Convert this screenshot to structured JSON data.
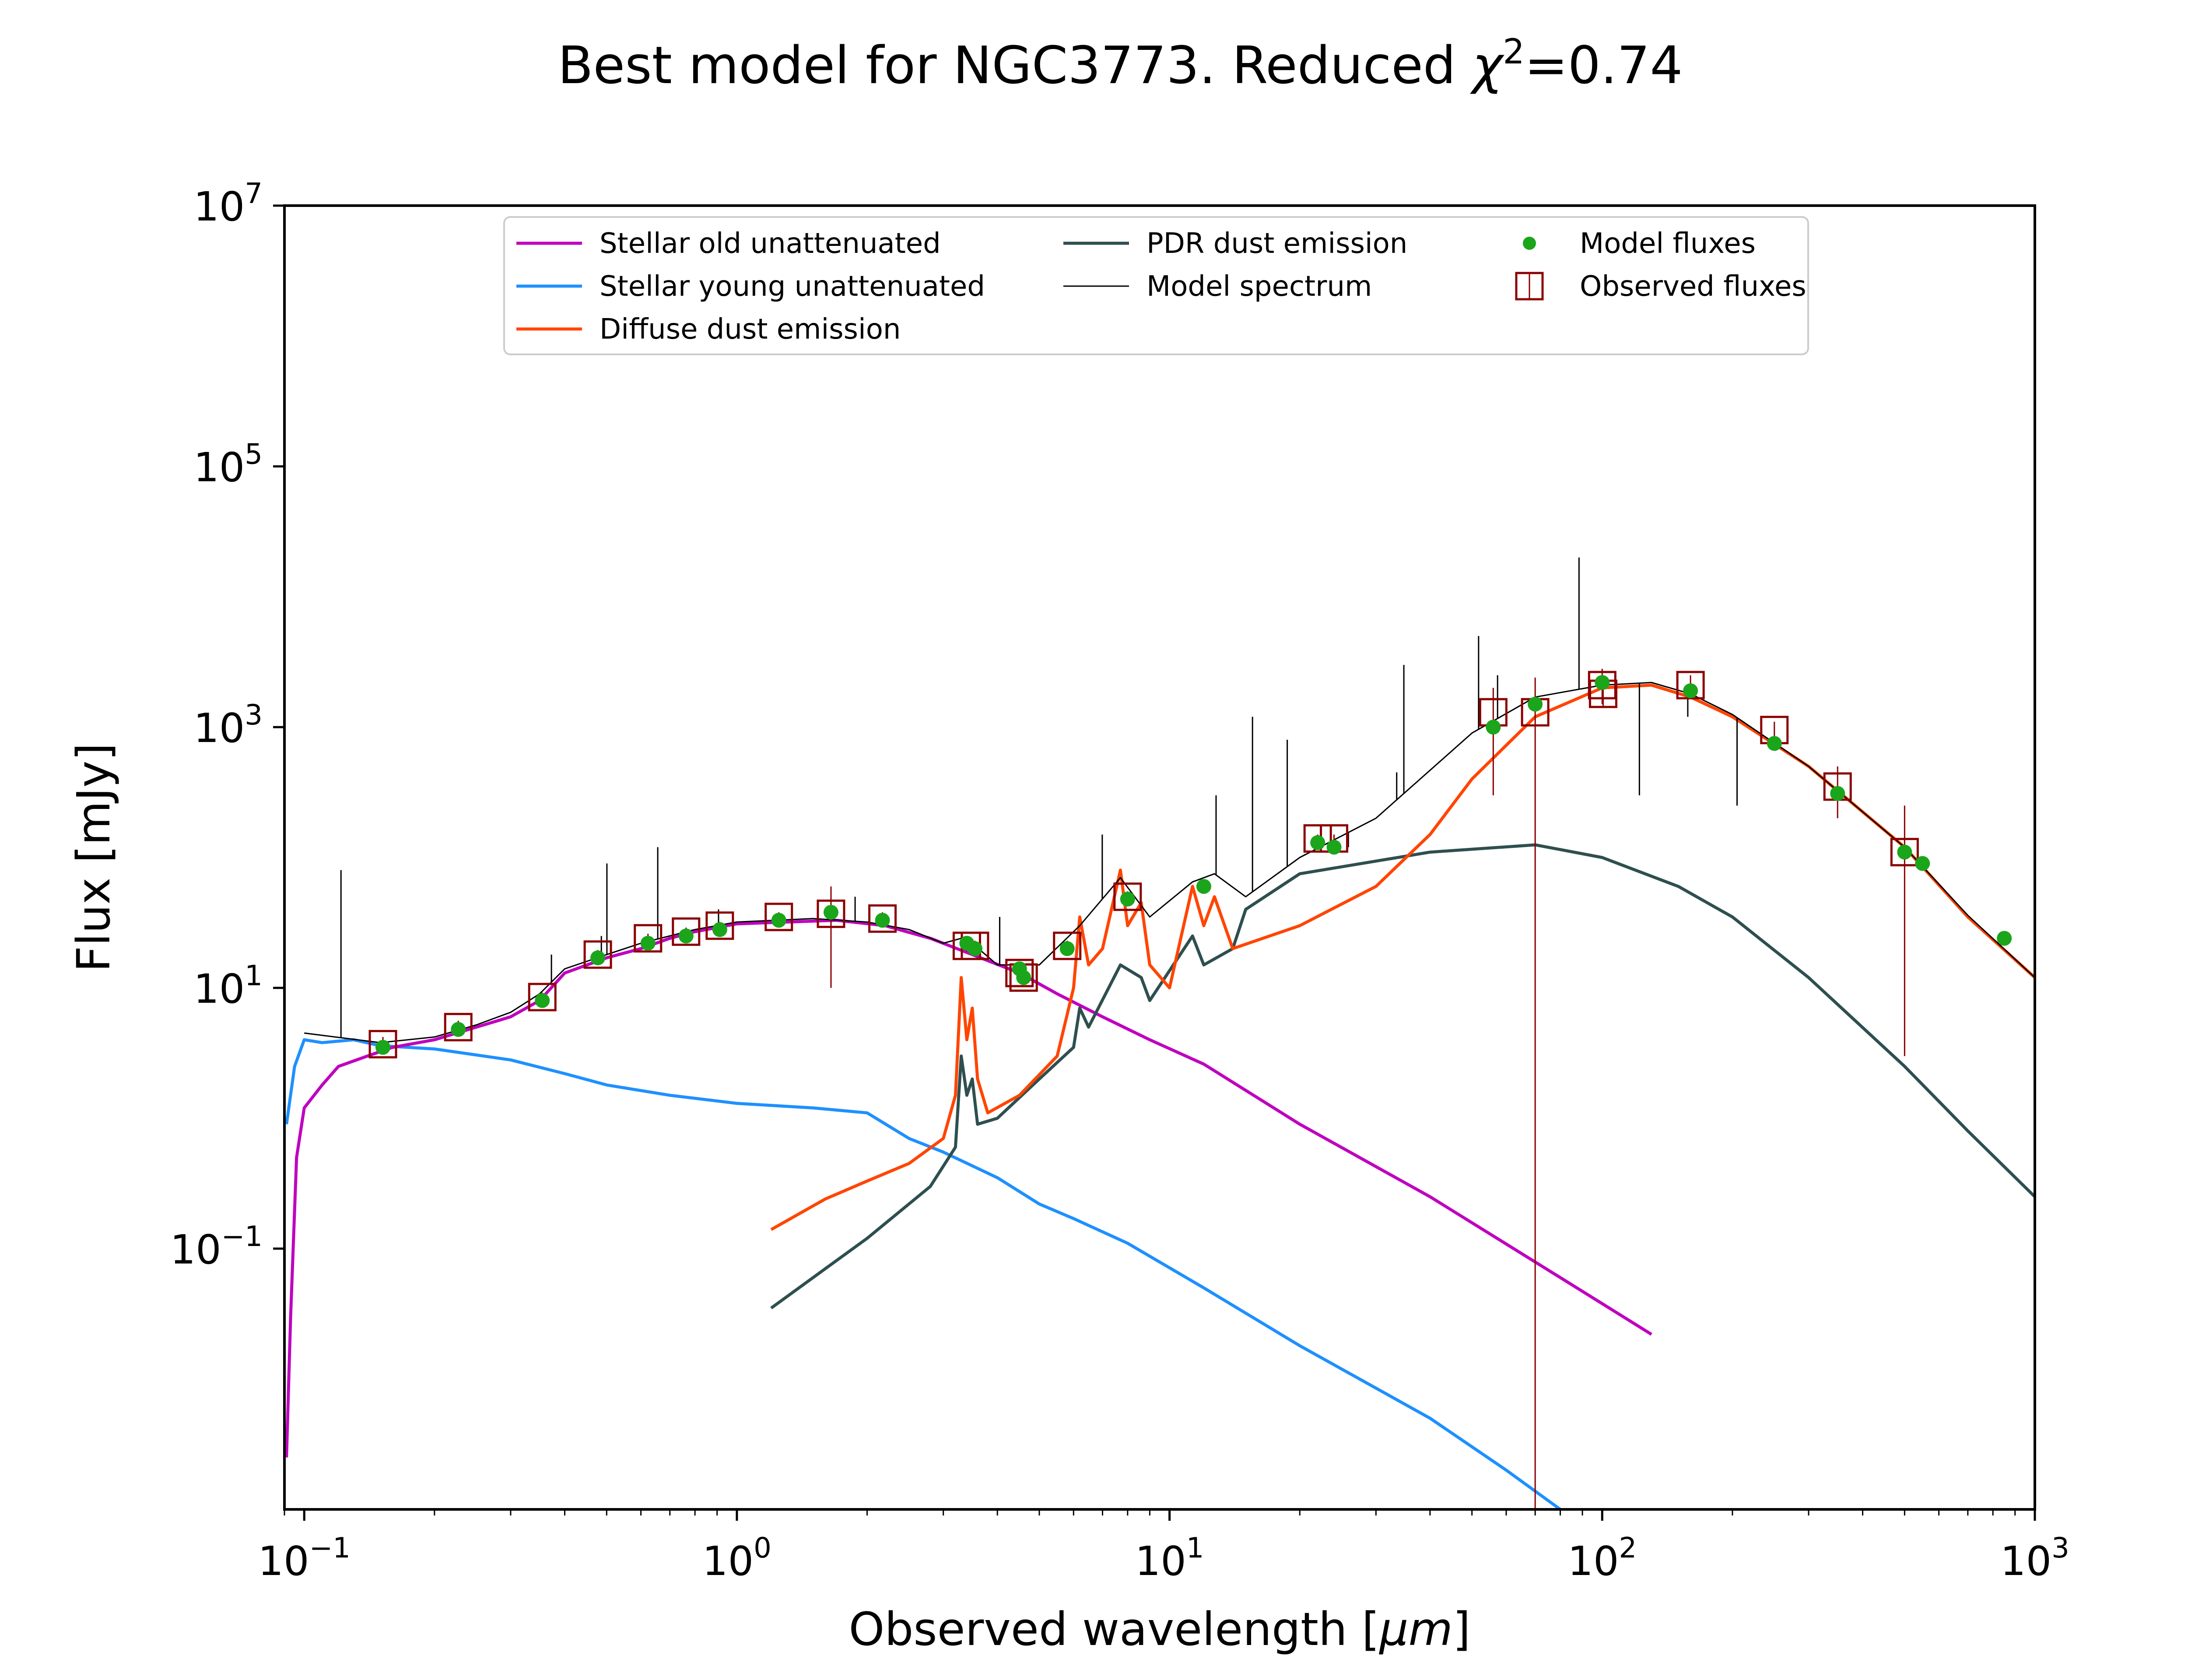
{
  "title": {
    "prefix": "Best model for NGC3773. Reduced ",
    "symbol": "χ",
    "superscript": "2",
    "suffix": "=0.74"
  },
  "chart_data": {
    "type": "line",
    "xscale": "log",
    "yscale": "log",
    "xlim": [
      0.09,
      1000
    ],
    "ylim": [
      0.001,
      10000000
    ],
    "xlabel_prefix": "Observed wavelength [",
    "xlabel_unit": "μm",
    "xlabel_suffix": "]",
    "ylabel": "Flux [mJy]",
    "x_ticks": [
      {
        "value": 0.1,
        "base": "10",
        "exp": "−1"
      },
      {
        "value": 1,
        "base": "10",
        "exp": "0"
      },
      {
        "value": 10,
        "base": "10",
        "exp": "1"
      },
      {
        "value": 100,
        "base": "10",
        "exp": "2"
      },
      {
        "value": 1000,
        "base": "10",
        "exp": "3"
      }
    ],
    "y_ticks": [
      {
        "value": 0.1,
        "base": "10",
        "exp": "−1"
      },
      {
        "value": 10,
        "base": "10",
        "exp": "1"
      },
      {
        "value": 1000,
        "base": "10",
        "exp": "3"
      },
      {
        "value": 100000,
        "base": "10",
        "exp": "5"
      },
      {
        "value": 10000000,
        "base": "10",
        "exp": "7"
      }
    ],
    "grid": false,
    "legend_position": "top-center",
    "series": [
      {
        "name": "Stellar old unattenuated",
        "color": "#bf00bf",
        "points": [
          [
            0.091,
            0.0025
          ],
          [
            0.093,
            0.03
          ],
          [
            0.096,
            0.5
          ],
          [
            0.1,
            1.2
          ],
          [
            0.11,
            1.8
          ],
          [
            0.12,
            2.5
          ],
          [
            0.14,
            3.0
          ],
          [
            0.16,
            3.5
          ],
          [
            0.2,
            4.0
          ],
          [
            0.25,
            5.0
          ],
          [
            0.3,
            6.0
          ],
          [
            0.35,
            8.0
          ],
          [
            0.4,
            13
          ],
          [
            0.5,
            17
          ],
          [
            0.6,
            20
          ],
          [
            0.7,
            24
          ],
          [
            0.8,
            27
          ],
          [
            1.0,
            31
          ],
          [
            1.3,
            32
          ],
          [
            1.7,
            33
          ],
          [
            2.2,
            30
          ],
          [
            2.8,
            24
          ],
          [
            3.5,
            18
          ],
          [
            4.5,
            13
          ],
          [
            5.5,
            9.0
          ],
          [
            7.0,
            6.0
          ],
          [
            9.0,
            4.0
          ],
          [
            12,
            2.6
          ],
          [
            20,
            0.9
          ],
          [
            40,
            0.25
          ],
          [
            80,
            0.06
          ],
          [
            130,
            0.022
          ]
        ]
      },
      {
        "name": "Stellar young unattenuated",
        "color": "#1e90ff",
        "points": [
          [
            0.091,
            0.9
          ],
          [
            0.095,
            2.5
          ],
          [
            0.1,
            4.0
          ],
          [
            0.11,
            3.8
          ],
          [
            0.13,
            4.0
          ],
          [
            0.15,
            3.6
          ],
          [
            0.2,
            3.4
          ],
          [
            0.3,
            2.8
          ],
          [
            0.4,
            2.2
          ],
          [
            0.5,
            1.8
          ],
          [
            0.7,
            1.5
          ],
          [
            1.0,
            1.3
          ],
          [
            1.5,
            1.2
          ],
          [
            2.0,
            1.1
          ],
          [
            2.5,
            0.7
          ],
          [
            3.0,
            0.55
          ],
          [
            4.0,
            0.35
          ],
          [
            5.0,
            0.22
          ],
          [
            6.0,
            0.17
          ],
          [
            8.0,
            0.11
          ],
          [
            12,
            0.05
          ],
          [
            20,
            0.018
          ],
          [
            40,
            0.005
          ],
          [
            60,
            0.002
          ],
          [
            80,
            0.001
          ]
        ]
      },
      {
        "name": "Diffuse dust emission",
        "color": "#ff4500",
        "points": [
          [
            1.2,
            0.14
          ],
          [
            1.6,
            0.24
          ],
          [
            2.0,
            0.33
          ],
          [
            2.5,
            0.45
          ],
          [
            3.0,
            0.7
          ],
          [
            3.2,
            1.5
          ],
          [
            3.3,
            12
          ],
          [
            3.4,
            4
          ],
          [
            3.5,
            7
          ],
          [
            3.6,
            2
          ],
          [
            3.8,
            1.1
          ],
          [
            4.5,
            1.5
          ],
          [
            5.5,
            3
          ],
          [
            6.0,
            10
          ],
          [
            6.2,
            35
          ],
          [
            6.5,
            15
          ],
          [
            7.0,
            20
          ],
          [
            7.7,
            80
          ],
          [
            8.0,
            30
          ],
          [
            8.6,
            45
          ],
          [
            9.0,
            15
          ],
          [
            10,
            10
          ],
          [
            11.3,
            60
          ],
          [
            12,
            30
          ],
          [
            12.7,
            50
          ],
          [
            14,
            20
          ],
          [
            20,
            30
          ],
          [
            30,
            60
          ],
          [
            40,
            150
          ],
          [
            50,
            400
          ],
          [
            70,
            1200
          ],
          [
            100,
            2000
          ],
          [
            130,
            2100
          ],
          [
            160,
            1700
          ],
          [
            200,
            1200
          ],
          [
            300,
            500
          ],
          [
            500,
            120
          ],
          [
            700,
            35
          ],
          [
            1000,
            12
          ]
        ]
      },
      {
        "name": "PDR dust emission",
        "color": "#2f4f4f",
        "points": [
          [
            1.2,
            0.035
          ],
          [
            2.0,
            0.12
          ],
          [
            2.8,
            0.3
          ],
          [
            3.2,
            0.6
          ],
          [
            3.3,
            3
          ],
          [
            3.4,
            1.5
          ],
          [
            3.5,
            2
          ],
          [
            3.6,
            0.9
          ],
          [
            4.0,
            1.0
          ],
          [
            5.0,
            2
          ],
          [
            6.0,
            3.5
          ],
          [
            6.2,
            7
          ],
          [
            6.5,
            5
          ],
          [
            7.7,
            15
          ],
          [
            8.6,
            12
          ],
          [
            9.0,
            8
          ],
          [
            11.3,
            25
          ],
          [
            12,
            15
          ],
          [
            14,
            20
          ],
          [
            15,
            40
          ],
          [
            20,
            75
          ],
          [
            40,
            110
          ],
          [
            70,
            125
          ],
          [
            100,
            100
          ],
          [
            150,
            60
          ],
          [
            200,
            35
          ],
          [
            300,
            12
          ],
          [
            500,
            2.5
          ],
          [
            700,
            0.8
          ],
          [
            1000,
            0.25
          ]
        ]
      },
      {
        "name": "Model spectrum",
        "color": "#000000",
        "points": [
          [
            0.1,
            4.5
          ],
          [
            0.15,
            3.8
          ],
          [
            0.2,
            4.2
          ],
          [
            0.25,
            5.2
          ],
          [
            0.3,
            6.5
          ],
          [
            0.35,
            9
          ],
          [
            0.4,
            14
          ],
          [
            0.5,
            18
          ],
          [
            0.6,
            22
          ],
          [
            0.8,
            28
          ],
          [
            1.0,
            32
          ],
          [
            1.5,
            34
          ],
          [
            2.0,
            32
          ],
          [
            2.5,
            28
          ],
          [
            3.0,
            22
          ],
          [
            3.3,
            24
          ],
          [
            3.5,
            22
          ],
          [
            4.0,
            15
          ],
          [
            5.0,
            15
          ],
          [
            6.2,
            30
          ],
          [
            7.7,
            70
          ],
          [
            9.0,
            35
          ],
          [
            11.3,
            65
          ],
          [
            12.7,
            75
          ],
          [
            15,
            50
          ],
          [
            20,
            100
          ],
          [
            30,
            200
          ],
          [
            50,
            900
          ],
          [
            70,
            1700
          ],
          [
            100,
            2100
          ],
          [
            130,
            2200
          ],
          [
            160,
            1800
          ],
          [
            200,
            1250
          ],
          [
            300,
            500
          ],
          [
            500,
            120
          ],
          [
            700,
            36
          ],
          [
            1000,
            12
          ]
        ]
      }
    ],
    "emission_lines": [
      [
        0.1216,
        80
      ],
      [
        0.3727,
        18
      ],
      [
        0.4861,
        25
      ],
      [
        0.5007,
        90
      ],
      [
        0.6563,
        120
      ],
      [
        0.9069,
        40
      ],
      [
        1.876,
        50
      ],
      [
        4.05,
        35
      ],
      [
        6.99,
        150
      ],
      [
        12.81,
        300
      ],
      [
        15.55,
        1200
      ],
      [
        18.71,
        800
      ],
      [
        25.9,
        120
      ],
      [
        33.5,
        450
      ],
      [
        34.8,
        3000
      ],
      [
        51.8,
        5000
      ],
      [
        57.3,
        2500
      ],
      [
        88.4,
        20000
      ],
      [
        121.9,
        300
      ],
      [
        157.7,
        1200
      ],
      [
        205,
        250
      ]
    ],
    "model_fluxes": {
      "name": "Model fluxes",
      "color": "#1aa51a",
      "points": [
        [
          0.152,
          3.5
        ],
        [
          0.227,
          4.8
        ],
        [
          0.355,
          8.0
        ],
        [
          0.477,
          17
        ],
        [
          0.623,
          22
        ],
        [
          0.763,
          25
        ],
        [
          0.913,
          28
        ],
        [
          1.25,
          33
        ],
        [
          1.65,
          38
        ],
        [
          2.17,
          33
        ],
        [
          3.4,
          22
        ],
        [
          3.55,
          20
        ],
        [
          4.5,
          14
        ],
        [
          4.6,
          12
        ],
        [
          5.8,
          20
        ],
        [
          8.0,
          48
        ],
        [
          12,
          60
        ],
        [
          22,
          130
        ],
        [
          24,
          120
        ],
        [
          56,
          1000
        ],
        [
          70,
          1500
        ],
        [
          100,
          2200
        ],
        [
          160,
          1900
        ],
        [
          250,
          750
        ],
        [
          350,
          310
        ],
        [
          500,
          110
        ],
        [
          550,
          90
        ],
        [
          850,
          24
        ]
      ]
    },
    "observed_fluxes": {
      "name": "Observed fluxes",
      "color": "#8b0000",
      "points": [
        {
          "x": 0.152,
          "y": 3.7,
          "lo": 3.2,
          "hi": 4.2
        },
        {
          "x": 0.227,
          "y": 5.0,
          "lo": 4.4,
          "hi": 5.6
        },
        {
          "x": 0.355,
          "y": 8.5,
          "lo": 7.8,
          "hi": 9.2
        },
        {
          "x": 0.477,
          "y": 18,
          "lo": 16.5,
          "hi": 19.5
        },
        {
          "x": 0.623,
          "y": 24,
          "lo": 22,
          "hi": 26
        },
        {
          "x": 0.763,
          "y": 27,
          "lo": 25,
          "hi": 29
        },
        {
          "x": 0.913,
          "y": 30,
          "lo": 28,
          "hi": 32
        },
        {
          "x": 1.25,
          "y": 35,
          "lo": 32,
          "hi": 38
        },
        {
          "x": 1.65,
          "y": 37,
          "lo": 10,
          "hi": 60
        },
        {
          "x": 2.17,
          "y": 34,
          "lo": 30,
          "hi": 38
        },
        {
          "x": 3.4,
          "y": 21,
          "lo": 19,
          "hi": 23
        },
        {
          "x": 3.55,
          "y": 21,
          "lo": 19,
          "hi": 23
        },
        {
          "x": 4.5,
          "y": 13,
          "lo": 12,
          "hi": 14
        },
        {
          "x": 4.6,
          "y": 12,
          "lo": 11,
          "hi": 13
        },
        {
          "x": 5.8,
          "y": 21,
          "lo": 19,
          "hi": 23
        },
        {
          "x": 8.0,
          "y": 50,
          "lo": 45,
          "hi": 55
        },
        {
          "x": 22,
          "y": 140,
          "lo": 130,
          "hi": 150
        },
        {
          "x": 24,
          "y": 140,
          "lo": 130,
          "hi": 150
        },
        {
          "x": 56,
          "y": 1300,
          "lo": 300,
          "hi": 2000
        },
        {
          "x": 70,
          "y": 1300,
          "lo": 0.001,
          "hi": 2400
        },
        {
          "x": 100,
          "y": 2100,
          "lo": 1500,
          "hi": 2800
        },
        {
          "x": 100.5,
          "y": 1800,
          "lo": 1400,
          "hi": 2200
        },
        {
          "x": 160,
          "y": 2100,
          "lo": 1700,
          "hi": 2500
        },
        {
          "x": 250,
          "y": 950,
          "lo": 800,
          "hi": 1100
        },
        {
          "x": 350,
          "y": 350,
          "lo": 200,
          "hi": 500
        },
        {
          "x": 500,
          "y": 110,
          "lo": 3,
          "hi": 250
        }
      ]
    },
    "legend": [
      {
        "label": "Stellar old unattenuated",
        "kind": "line",
        "color": "#bf00bf"
      },
      {
        "label": "Stellar young unattenuated",
        "kind": "line",
        "color": "#1e90ff"
      },
      {
        "label": "Diffuse dust emission",
        "kind": "line",
        "color": "#ff4500"
      },
      {
        "label": "PDR dust emission",
        "kind": "line",
        "color": "#2f4f4f"
      },
      {
        "label": "Model spectrum",
        "kind": "thinline",
        "color": "#000000"
      },
      {
        "label": "Model fluxes",
        "kind": "dot",
        "color": "#1aa51a"
      },
      {
        "label": "Observed fluxes",
        "kind": "box",
        "color": "#8b0000"
      }
    ]
  }
}
